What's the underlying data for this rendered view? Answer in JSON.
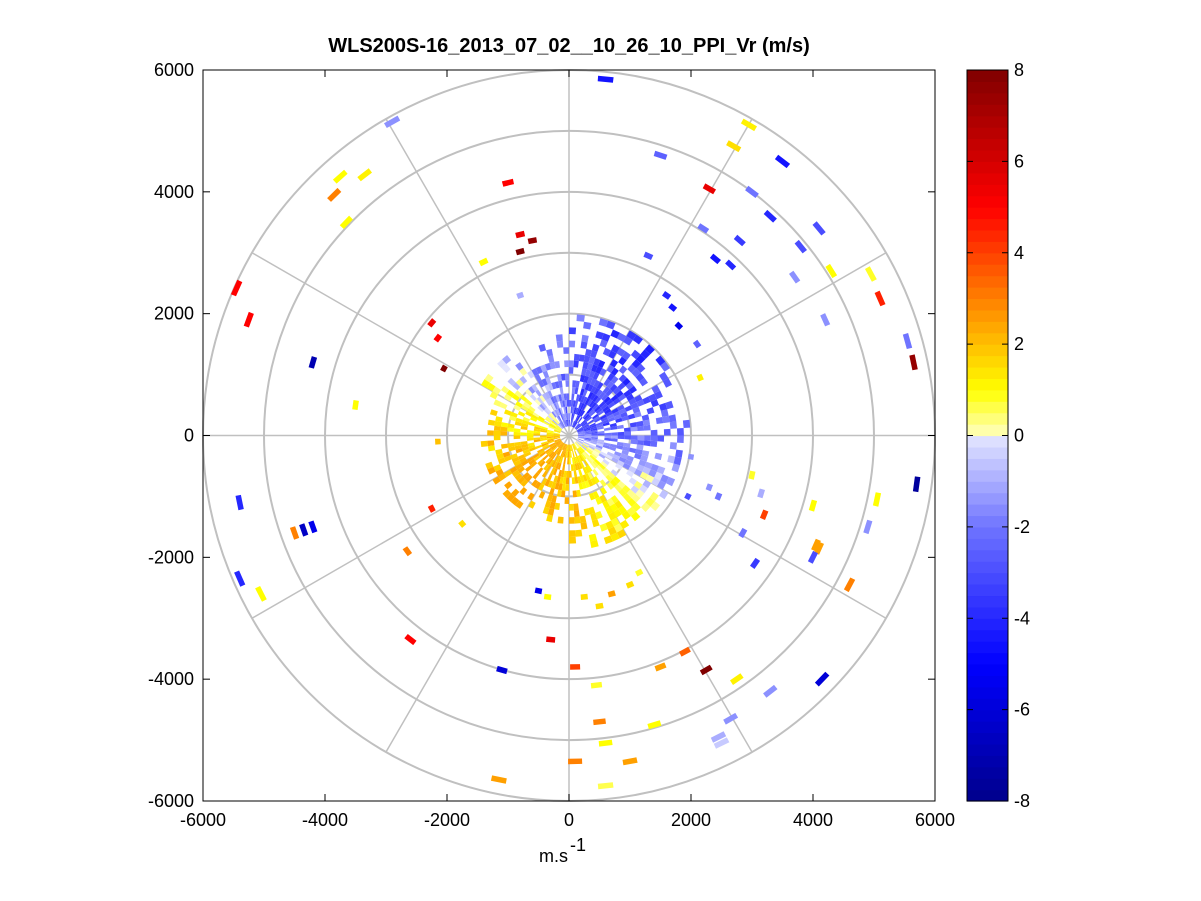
{
  "chart_data": {
    "type": "polar_ppi_scatter",
    "title": "WLS200S-16_2013_07_02__10_26_10_PPI_Vr (m/s)",
    "xlabel_main": "m.s",
    "xlabel_sup": "-1",
    "ylabel": "",
    "xlim": [
      -6000,
      6000
    ],
    "ylim": [
      -6000,
      6000
    ],
    "x_ticks": [
      "-6000",
      "-4000",
      "-2000",
      "0",
      "2000",
      "4000",
      "6000"
    ],
    "y_ticks": [
      "6000",
      "4000",
      "2000",
      "0",
      "-2000",
      "-4000",
      "-6000"
    ],
    "x_tick_values": [
      -6000,
      -4000,
      -2000,
      0,
      2000,
      4000,
      6000
    ],
    "y_tick_values": [
      6000,
      4000,
      2000,
      0,
      -2000,
      -4000,
      -6000
    ],
    "grid_rings_m": [
      1000,
      2000,
      3000,
      4000,
      5000,
      6000
    ],
    "grid_spokes_deg": [
      0,
      30,
      60,
      90,
      120,
      150,
      180,
      210,
      240,
      270,
      300,
      330
    ],
    "colorbar": {
      "label": "Vr (m/s)",
      "range": [
        -8,
        8
      ],
      "ticks": [
        "8",
        "6",
        "4",
        "2",
        "0",
        "-2",
        "-4",
        "-6",
        "-8"
      ],
      "tick_values": [
        8,
        6,
        4,
        2,
        0,
        -2,
        -4,
        -6,
        -8
      ],
      "colormap_stops": [
        {
          "v": -8,
          "color": "#00008b"
        },
        {
          "v": -5,
          "color": "#0000ff"
        },
        {
          "v": -2,
          "color": "#6f74ff"
        },
        {
          "v": 0,
          "color": "#e4e6ff"
        },
        {
          "v": 0.01,
          "color": "#ffffc0"
        },
        {
          "v": 1,
          "color": "#ffff00"
        },
        {
          "v": 3,
          "color": "#ff8000"
        },
        {
          "v": 5,
          "color": "#ff0000"
        },
        {
          "v": 8,
          "color": "#800000"
        }
      ]
    },
    "measurements_description": "Radial velocity samples; positive (away) in yellow/red, negative (toward) in blue. Inner core within ~2000 m shows dense data; outer ranges show sparse returns.",
    "sparse_points": [
      {
        "x": 600,
        "y": 5850,
        "v": -4.5
      },
      {
        "x": 2950,
        "y": 5100,
        "v": 1.2
      },
      {
        "x": 1500,
        "y": 4600,
        "v": -2.5
      },
      {
        "x": 2700,
        "y": 4750,
        "v": 1.5
      },
      {
        "x": 3500,
        "y": 4500,
        "v": -4.5
      },
      {
        "x": 2300,
        "y": 4050,
        "v": 5.5
      },
      {
        "x": 3000,
        "y": 4000,
        "v": -2.0
      },
      {
        "x": 3300,
        "y": 3600,
        "v": -4.0
      },
      {
        "x": 4100,
        "y": 3400,
        "v": -3.0
      },
      {
        "x": 2200,
        "y": 3400,
        "v": -2.0
      },
      {
        "x": 2800,
        "y": 3200,
        "v": -3.5
      },
      {
        "x": 3800,
        "y": 3100,
        "v": -3.0
      },
      {
        "x": 2400,
        "y": 2900,
        "v": -4.5
      },
      {
        "x": 2650,
        "y": 2800,
        "v": -4.0
      },
      {
        "x": 1300,
        "y": 2950,
        "v": -3.0
      },
      {
        "x": 3700,
        "y": 2600,
        "v": -1.5
      },
      {
        "x": 4300,
        "y": 2700,
        "v": 1.0
      },
      {
        "x": 4950,
        "y": 2650,
        "v": 0.8
      },
      {
        "x": 5100,
        "y": 2250,
        "v": 4.5
      },
      {
        "x": 4200,
        "y": 1900,
        "v": -1.5
      },
      {
        "x": 5550,
        "y": 1550,
        "v": -2.0
      },
      {
        "x": 5650,
        "y": 1200,
        "v": 7.5
      },
      {
        "x": 2150,
        "y": 950,
        "v": 1.2
      },
      {
        "x": -2900,
        "y": 5150,
        "v": -1.5
      },
      {
        "x": -3850,
        "y": 3950,
        "v": 3.0
      },
      {
        "x": -3750,
        "y": 4250,
        "v": 1.0
      },
      {
        "x": -3350,
        "y": 4280,
        "v": 1.2
      },
      {
        "x": -3650,
        "y": 3500,
        "v": 1.0
      },
      {
        "x": -1000,
        "y": 4150,
        "v": 5.0
      },
      {
        "x": -800,
        "y": 3300,
        "v": 5.5
      },
      {
        "x": -600,
        "y": 3200,
        "v": 7.5
      },
      {
        "x": -800,
        "y": 3020,
        "v": 8.0
      },
      {
        "x": -1400,
        "y": 2850,
        "v": 1.0
      },
      {
        "x": -800,
        "y": 2300,
        "v": -1.0
      },
      {
        "x": -5450,
        "y": 2420,
        "v": 5.0
      },
      {
        "x": -5250,
        "y": 1900,
        "v": 5.0
      },
      {
        "x": -4200,
        "y": 1200,
        "v": -7.0
      },
      {
        "x": -3500,
        "y": 500,
        "v": 1.0
      },
      {
        "x": -2250,
        "y": 1850,
        "v": 5.5
      },
      {
        "x": -2150,
        "y": 1600,
        "v": 5.0
      },
      {
        "x": -2050,
        "y": 1100,
        "v": 8.0
      },
      {
        "x": 5700,
        "y": -800,
        "v": -7.5
      },
      {
        "x": 5050,
        "y": -1050,
        "v": 1.0
      },
      {
        "x": 4900,
        "y": -1500,
        "v": -1.5
      },
      {
        "x": 4000,
        "y": -1150,
        "v": 1.0
      },
      {
        "x": 4050,
        "y": -1800,
        "v": 2.5
      },
      {
        "x": 4100,
        "y": -1850,
        "v": 2.5
      },
      {
        "x": 3200,
        "y": -1300,
        "v": 4.0
      },
      {
        "x": 3150,
        "y": -950,
        "v": -1.0
      },
      {
        "x": 3000,
        "y": -650,
        "v": 0.8
      },
      {
        "x": 2850,
        "y": -1600,
        "v": -2.0
      },
      {
        "x": 3050,
        "y": -2100,
        "v": -3.5
      },
      {
        "x": 4000,
        "y": -2000,
        "v": -3.0
      },
      {
        "x": 4600,
        "y": -2450,
        "v": 3.0
      },
      {
        "x": 2450,
        "y": -1000,
        "v": -2.0
      },
      {
        "x": 2300,
        "y": -850,
        "v": -1.5
      },
      {
        "x": 2000,
        "y": -350,
        "v": -1.5
      },
      {
        "x": 1950,
        "y": -1000,
        "v": -3.0
      },
      {
        "x": 2250,
        "y": -3850,
        "v": 8.0
      },
      {
        "x": 1500,
        "y": -3800,
        "v": 2.5
      },
      {
        "x": 1900,
        "y": -3550,
        "v": 3.5
      },
      {
        "x": 2750,
        "y": -4000,
        "v": 1.2
      },
      {
        "x": 3300,
        "y": -4200,
        "v": -1.5
      },
      {
        "x": 4150,
        "y": -4000,
        "v": -6.0
      },
      {
        "x": 2650,
        "y": -4650,
        "v": -1.5
      },
      {
        "x": 2450,
        "y": -4950,
        "v": -1.0
      },
      {
        "x": 2500,
        "y": -5050,
        "v": -0.5
      },
      {
        "x": 1400,
        "y": -4750,
        "v": 1.0
      },
      {
        "x": 1000,
        "y": -5350,
        "v": 2.5
      },
      {
        "x": 600,
        "y": -5050,
        "v": 1.0
      },
      {
        "x": 500,
        "y": -4700,
        "v": 3.0
      },
      {
        "x": 100,
        "y": -5350,
        "v": 3.0
      },
      {
        "x": 600,
        "y": -5750,
        "v": 0.6
      },
      {
        "x": 450,
        "y": -4100,
        "v": 0.8
      },
      {
        "x": 100,
        "y": -3800,
        "v": 4.0
      },
      {
        "x": -300,
        "y": -3350,
        "v": 5.5
      },
      {
        "x": -1100,
        "y": -3850,
        "v": -6.0
      },
      {
        "x": -1150,
        "y": -5650,
        "v": 2.5
      },
      {
        "x": -2600,
        "y": -3350,
        "v": 5.0
      },
      {
        "x": -4350,
        "y": -1550,
        "v": -6.5
      },
      {
        "x": -4200,
        "y": -1500,
        "v": -5.5
      },
      {
        "x": -4500,
        "y": -1600,
        "v": 3.0
      },
      {
        "x": -5400,
        "y": -1100,
        "v": -4.0
      },
      {
        "x": -5400,
        "y": -2350,
        "v": -4.0
      },
      {
        "x": -5050,
        "y": -2600,
        "v": 1.0
      },
      {
        "x": -2650,
        "y": -1900,
        "v": 3.0
      },
      {
        "x": -2250,
        "y": -1200,
        "v": 4.5
      },
      {
        "x": -2150,
        "y": -100,
        "v": 2.0
      },
      {
        "x": -1750,
        "y": -1450,
        "v": 1.5
      },
      {
        "x": 500,
        "y": -2800,
        "v": 1.5
      },
      {
        "x": -500,
        "y": -2550,
        "v": -5.5
      },
      {
        "x": -350,
        "y": -2650,
        "v": 1.0
      },
      {
        "x": 250,
        "y": -2650,
        "v": 1.5
      },
      {
        "x": 1000,
        "y": -2450,
        "v": 1.5
      },
      {
        "x": 1150,
        "y": -2250,
        "v": 0.8
      },
      {
        "x": 700,
        "y": -2600,
        "v": 2.5
      },
      {
        "x": 2100,
        "y": 1500,
        "v": -2.5
      },
      {
        "x": 1700,
        "y": 2100,
        "v": -4.5
      },
      {
        "x": 1800,
        "y": 1800,
        "v": -5.5
      },
      {
        "x": 1600,
        "y": 2300,
        "v": -4.0
      }
    ],
    "dense_core": {
      "inner_radius_m": 150,
      "outer_radius_m": 2100,
      "angular_bins": 96,
      "range_bins": 18,
      "pattern": "North-east half negative (blue, strongest ~ -4 to -5 m/s near 30-90 deg), south-west half positive (yellow/orange ~ 1-2 m/s), transition near 150 and 330 deg"
    }
  }
}
